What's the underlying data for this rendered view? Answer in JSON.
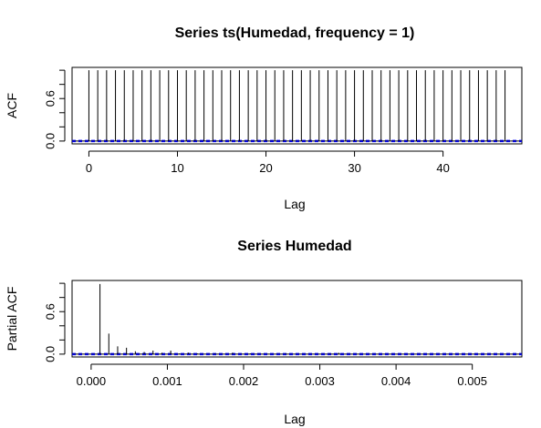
{
  "chart_data": [
    {
      "type": "bar",
      "title": "Series  ts(Humedad, frequency = 1)",
      "xlabel": "Lag",
      "ylabel": "ACF",
      "xlim": [
        -1.9,
        48.9
      ],
      "ylim": [
        -0.04,
        1.04
      ],
      "xticks": [
        0,
        10,
        20,
        30,
        40
      ],
      "yticks": [
        0.0,
        0.2,
        0.4,
        0.6,
        0.8,
        1.0
      ],
      "ytick_labels_shown": [
        "0.0",
        "0.6"
      ],
      "confidence_band": 0.01,
      "x": [
        0,
        1,
        2,
        3,
        4,
        5,
        6,
        7,
        8,
        9,
        10,
        11,
        12,
        13,
        14,
        15,
        16,
        17,
        18,
        19,
        20,
        21,
        22,
        23,
        24,
        25,
        26,
        27,
        28,
        29,
        30,
        31,
        32,
        33,
        34,
        35,
        36,
        37,
        38,
        39,
        40,
        41,
        42,
        43,
        44,
        45,
        46,
        47
      ],
      "values": [
        1.0,
        1.0,
        1.0,
        1.0,
        1.0,
        1.0,
        1.0,
        1.0,
        1.0,
        1.0,
        1.0,
        1.0,
        1.0,
        1.0,
        1.0,
        1.0,
        1.0,
        1.0,
        1.0,
        1.0,
        1.0,
        1.0,
        1.0,
        1.0,
        1.0,
        1.0,
        1.0,
        1.0,
        1.0,
        1.0,
        1.0,
        1.0,
        1.0,
        1.0,
        1.0,
        1.0,
        1.0,
        1.0,
        1.0,
        1.0,
        1.0,
        1.0,
        1.0,
        1.0,
        1.0,
        1.0,
        1.0,
        1.0
      ],
      "grid": false,
      "colors": {
        "bars": "#000000",
        "band": "#0000ff"
      }
    },
    {
      "type": "bar",
      "title": "Series  Humedad",
      "xlabel": "Lag",
      "ylabel": "Partial ACF",
      "xlim": [
        -0.00025,
        0.00565
      ],
      "ylim": [
        -0.04,
        1.04
      ],
      "xticks": [
        0.0,
        0.001,
        0.002,
        0.003,
        0.004,
        0.005
      ],
      "xtick_labels": [
        "0.000",
        "0.001",
        "0.002",
        "0.003",
        "0.004",
        "0.005"
      ],
      "yticks": [
        0.0,
        0.2,
        0.4,
        0.6,
        0.8,
        1.0
      ],
      "ytick_labels_shown": [
        "0.0",
        "0.6"
      ],
      "confidence_band": 0.01,
      "x": [
        0.000116,
        0.000232,
        0.000348,
        0.000464,
        0.00058,
        0.000696,
        0.000812,
        0.000928,
        0.001044,
        0.00116,
        0.001276,
        0.001392,
        0.001508,
        0.001624,
        0.00174,
        0.001856,
        0.001972,
        0.002088,
        0.002204,
        0.00232,
        0.002436,
        0.002552,
        0.002668,
        0.002784,
        0.0029,
        0.003016,
        0.003132,
        0.003248,
        0.003364,
        0.00348,
        0.003596,
        0.003712,
        0.003828,
        0.003944,
        0.00406,
        0.004176,
        0.004292,
        0.004408,
        0.004524,
        0.00464,
        0.004756,
        0.004872,
        0.004988,
        0.005104,
        0.00522,
        0.005336,
        0.005452
      ],
      "values": [
        0.99,
        0.29,
        0.11,
        0.09,
        0.04,
        0.03,
        0.05,
        0.02,
        0.05,
        0.01,
        0.02,
        0.01,
        0.005,
        0.01,
        0.005,
        0.02,
        0.005,
        0.01,
        0.005,
        0.005,
        0.005,
        0.01,
        0.005,
        0.005,
        0.005,
        0.005,
        0.01,
        0.02,
        0.005,
        0.005,
        0.005,
        0.005,
        0.005,
        0.005,
        0.005,
        0.005,
        0.005,
        0.005,
        0.005,
        0.005,
        0.005,
        0.005,
        0.005,
        0.005,
        0.005,
        0.005,
        0.005
      ],
      "grid": false,
      "colors": {
        "bars": "#000000",
        "band": "#0000ff"
      }
    }
  ]
}
